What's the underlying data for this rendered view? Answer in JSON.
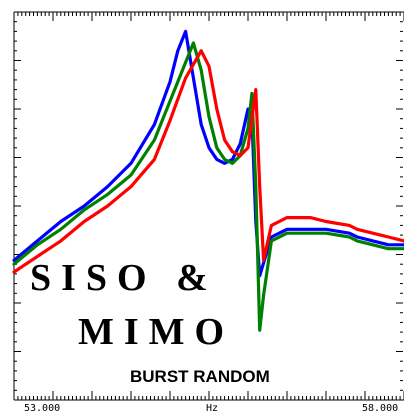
{
  "chart_data": {
    "type": "line",
    "title_lines": [
      "SISO &",
      "MIMO"
    ],
    "subtitle": "BURST RANDOM",
    "xlabel": "Hz",
    "x_tick_labels": [
      "53.000",
      "58.000"
    ],
    "xlim": [
      53.0,
      58.0
    ],
    "ylim": [
      0,
      1
    ],
    "y_scale": "linear",
    "grid": false,
    "series": [
      {
        "color": "#0000ff",
        "points": [
          [
            53.0,
            0.64
          ],
          [
            53.3,
            0.59
          ],
          [
            53.6,
            0.54
          ],
          [
            53.9,
            0.5
          ],
          [
            54.2,
            0.45
          ],
          [
            54.5,
            0.39
          ],
          [
            54.8,
            0.29
          ],
          [
            55.0,
            0.18
          ],
          [
            55.1,
            0.1
          ],
          [
            55.2,
            0.05
          ],
          [
            55.3,
            0.17
          ],
          [
            55.4,
            0.29
          ],
          [
            55.5,
            0.35
          ],
          [
            55.6,
            0.38
          ],
          [
            55.7,
            0.39
          ],
          [
            55.8,
            0.38
          ],
          [
            55.9,
            0.34
          ],
          [
            56.0,
            0.25
          ],
          [
            56.05,
            0.27
          ],
          [
            56.1,
            0.54
          ],
          [
            56.15,
            0.68
          ],
          [
            56.3,
            0.58
          ],
          [
            56.5,
            0.56
          ],
          [
            56.8,
            0.56
          ],
          [
            57.0,
            0.56
          ],
          [
            57.3,
            0.57
          ],
          [
            57.4,
            0.58
          ],
          [
            57.6,
            0.59
          ],
          [
            57.8,
            0.6
          ],
          [
            58.0,
            0.6
          ]
        ]
      },
      {
        "color": "#008000",
        "points": [
          [
            53.0,
            0.65
          ],
          [
            53.3,
            0.6
          ],
          [
            53.6,
            0.56
          ],
          [
            53.9,
            0.51
          ],
          [
            54.2,
            0.47
          ],
          [
            54.5,
            0.42
          ],
          [
            54.8,
            0.33
          ],
          [
            55.0,
            0.23
          ],
          [
            55.2,
            0.13
          ],
          [
            55.3,
            0.08
          ],
          [
            55.4,
            0.15
          ],
          [
            55.5,
            0.27
          ],
          [
            55.6,
            0.35
          ],
          [
            55.7,
            0.38
          ],
          [
            55.8,
            0.39
          ],
          [
            55.9,
            0.37
          ],
          [
            56.0,
            0.3
          ],
          [
            56.05,
            0.21
          ],
          [
            56.1,
            0.45
          ],
          [
            56.15,
            0.82
          ],
          [
            56.2,
            0.73
          ],
          [
            56.3,
            0.59
          ],
          [
            56.5,
            0.57
          ],
          [
            56.8,
            0.57
          ],
          [
            57.0,
            0.57
          ],
          [
            57.3,
            0.58
          ],
          [
            57.4,
            0.59
          ],
          [
            57.6,
            0.6
          ],
          [
            57.8,
            0.61
          ],
          [
            58.0,
            0.61
          ]
        ]
      },
      {
        "color": "#ff0000",
        "points": [
          [
            53.0,
            0.67
          ],
          [
            53.3,
            0.63
          ],
          [
            53.6,
            0.59
          ],
          [
            53.9,
            0.54
          ],
          [
            54.2,
            0.5
          ],
          [
            54.5,
            0.45
          ],
          [
            54.8,
            0.38
          ],
          [
            55.0,
            0.28
          ],
          [
            55.2,
            0.17
          ],
          [
            55.4,
            0.1
          ],
          [
            55.5,
            0.14
          ],
          [
            55.6,
            0.25
          ],
          [
            55.7,
            0.33
          ],
          [
            55.8,
            0.36
          ],
          [
            55.9,
            0.37
          ],
          [
            56.0,
            0.35
          ],
          [
            56.1,
            0.2
          ],
          [
            56.15,
            0.45
          ],
          [
            56.2,
            0.64
          ],
          [
            56.3,
            0.55
          ],
          [
            56.5,
            0.53
          ],
          [
            56.8,
            0.53
          ],
          [
            57.0,
            0.54
          ],
          [
            57.3,
            0.55
          ],
          [
            57.4,
            0.56
          ],
          [
            57.6,
            0.57
          ],
          [
            57.8,
            0.58
          ],
          [
            58.0,
            0.59
          ]
        ]
      }
    ]
  }
}
